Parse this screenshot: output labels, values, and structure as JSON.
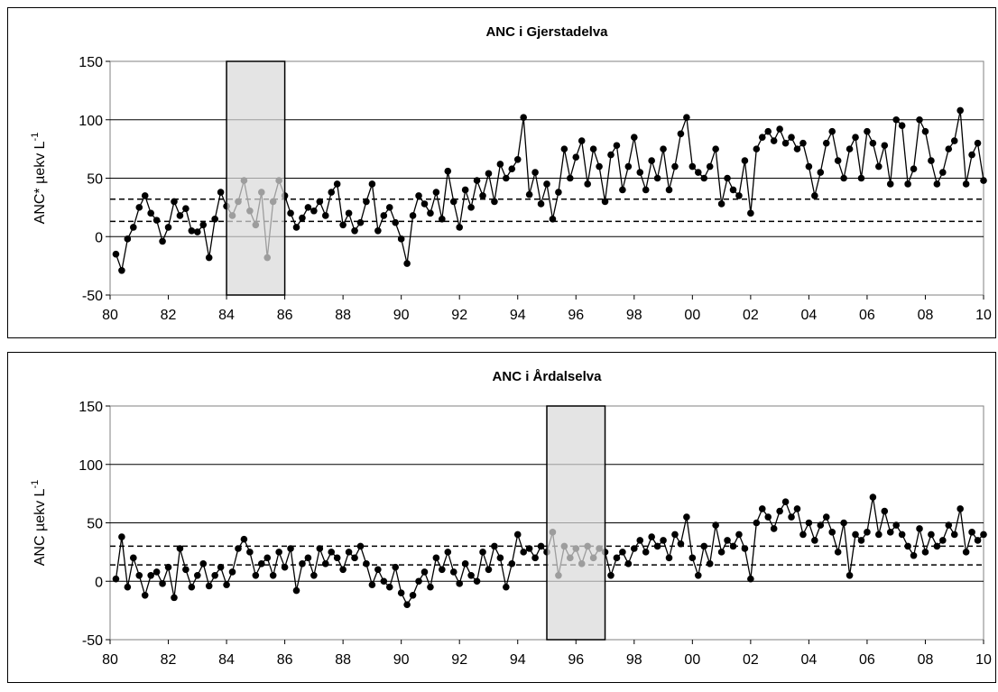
{
  "chart_data": [
    {
      "type": "line",
      "title": "ANC i Gjerstadelva",
      "ylabel_main": "ANC* µekv L",
      "ylabel_sup": "-1",
      "xlabel": "",
      "x_ticks": [
        "80",
        "82",
        "84",
        "86",
        "88",
        "90",
        "92",
        "94",
        "96",
        "98",
        "00",
        "02",
        "04",
        "06",
        "08",
        "10"
      ],
      "x_range": [
        1980,
        2010
      ],
      "y_ticks": [
        150,
        100,
        50,
        0,
        -50
      ],
      "ylim": [
        -50,
        150
      ],
      "grid": "horizontal",
      "reference_lines": [
        32,
        13
      ],
      "highlight_period": [
        1984,
        1986
      ],
      "series_points": [
        [
          1980.2,
          -15
        ],
        [
          1980.4,
          -29
        ],
        [
          1980.6,
          -2
        ],
        [
          1980.8,
          8
        ],
        [
          1981.0,
          25
        ],
        [
          1981.2,
          35
        ],
        [
          1981.4,
          20
        ],
        [
          1981.6,
          14
        ],
        [
          1981.8,
          -4
        ],
        [
          1982.0,
          8
        ],
        [
          1982.2,
          30
        ],
        [
          1982.4,
          18
        ],
        [
          1982.6,
          24
        ],
        [
          1982.8,
          5
        ],
        [
          1983.0,
          4
        ],
        [
          1983.2,
          10
        ],
        [
          1983.4,
          -18
        ],
        [
          1983.6,
          15
        ],
        [
          1983.8,
          38
        ],
        [
          1984.0,
          26
        ],
        [
          1984.2,
          18
        ],
        [
          1984.4,
          30
        ],
        [
          1984.6,
          48
        ],
        [
          1984.8,
          22
        ],
        [
          1985.0,
          10
        ],
        [
          1985.2,
          38
        ],
        [
          1985.4,
          -18
        ],
        [
          1985.6,
          30
        ],
        [
          1985.8,
          48
        ],
        [
          1986.0,
          35
        ],
        [
          1986.2,
          20
        ],
        [
          1986.4,
          8
        ],
        [
          1986.6,
          16
        ],
        [
          1986.8,
          25
        ],
        [
          1987.0,
          22
        ],
        [
          1987.2,
          30
        ],
        [
          1987.4,
          18
        ],
        [
          1987.6,
          38
        ],
        [
          1987.8,
          45
        ],
        [
          1988.0,
          10
        ],
        [
          1988.2,
          20
        ],
        [
          1988.4,
          5
        ],
        [
          1988.6,
          12
        ],
        [
          1988.8,
          30
        ],
        [
          1989.0,
          45
        ],
        [
          1989.2,
          5
        ],
        [
          1989.4,
          18
        ],
        [
          1989.6,
          25
        ],
        [
          1989.8,
          12
        ],
        [
          1990.0,
          -2
        ],
        [
          1990.2,
          -23
        ],
        [
          1990.4,
          18
        ],
        [
          1990.6,
          35
        ],
        [
          1990.8,
          28
        ],
        [
          1991.0,
          20
        ],
        [
          1991.2,
          38
        ],
        [
          1991.4,
          15
        ],
        [
          1991.6,
          56
        ],
        [
          1991.8,
          30
        ],
        [
          1992.0,
          8
        ],
        [
          1992.2,
          40
        ],
        [
          1992.4,
          25
        ],
        [
          1992.6,
          48
        ],
        [
          1992.8,
          35
        ],
        [
          1993.0,
          54
        ],
        [
          1993.2,
          30
        ],
        [
          1993.4,
          62
        ],
        [
          1993.6,
          50
        ],
        [
          1993.8,
          58
        ],
        [
          1994.0,
          66
        ],
        [
          1994.2,
          102
        ],
        [
          1994.4,
          36
        ],
        [
          1994.6,
          55
        ],
        [
          1994.8,
          28
        ],
        [
          1995.0,
          45
        ],
        [
          1995.2,
          15
        ],
        [
          1995.4,
          38
        ],
        [
          1995.6,
          75
        ],
        [
          1995.8,
          50
        ],
        [
          1996.0,
          68
        ],
        [
          1996.2,
          82
        ],
        [
          1996.4,
          45
        ],
        [
          1996.6,
          75
        ],
        [
          1996.8,
          60
        ],
        [
          1997.0,
          30
        ],
        [
          1997.2,
          70
        ],
        [
          1997.4,
          78
        ],
        [
          1997.6,
          40
        ],
        [
          1997.8,
          60
        ],
        [
          1998.0,
          85
        ],
        [
          1998.2,
          55
        ],
        [
          1998.4,
          40
        ],
        [
          1998.6,
          65
        ],
        [
          1998.8,
          50
        ],
        [
          1999.0,
          75
        ],
        [
          1999.2,
          40
        ],
        [
          1999.4,
          60
        ],
        [
          1999.6,
          88
        ],
        [
          1999.8,
          102
        ],
        [
          2000.0,
          60
        ],
        [
          2000.2,
          55
        ],
        [
          2000.4,
          50
        ],
        [
          2000.6,
          60
        ],
        [
          2000.8,
          75
        ],
        [
          2001.0,
          28
        ],
        [
          2001.2,
          50
        ],
        [
          2001.4,
          40
        ],
        [
          2001.6,
          35
        ],
        [
          2001.8,
          65
        ],
        [
          2002.0,
          20
        ],
        [
          2002.2,
          75
        ],
        [
          2002.4,
          85
        ],
        [
          2002.6,
          90
        ],
        [
          2002.8,
          82
        ],
        [
          2003.0,
          92
        ],
        [
          2003.2,
          80
        ],
        [
          2003.4,
          85
        ],
        [
          2003.6,
          75
        ],
        [
          2003.8,
          80
        ],
        [
          2004.0,
          60
        ],
        [
          2004.2,
          35
        ],
        [
          2004.4,
          55
        ],
        [
          2004.6,
          80
        ],
        [
          2004.8,
          90
        ],
        [
          2005.0,
          65
        ],
        [
          2005.2,
          50
        ],
        [
          2005.4,
          75
        ],
        [
          2005.6,
          85
        ],
        [
          2005.8,
          50
        ],
        [
          2006.0,
          90
        ],
        [
          2006.2,
          80
        ],
        [
          2006.4,
          60
        ],
        [
          2006.6,
          78
        ],
        [
          2006.8,
          45
        ],
        [
          2007.0,
          100
        ],
        [
          2007.2,
          95
        ],
        [
          2007.4,
          45
        ],
        [
          2007.6,
          58
        ],
        [
          2007.8,
          100
        ],
        [
          2008.0,
          90
        ],
        [
          2008.2,
          65
        ],
        [
          2008.4,
          45
        ],
        [
          2008.6,
          55
        ],
        [
          2008.8,
          75
        ],
        [
          2009.0,
          82
        ],
        [
          2009.2,
          108
        ],
        [
          2009.4,
          45
        ],
        [
          2009.6,
          70
        ],
        [
          2009.8,
          80
        ],
        [
          2010.0,
          48
        ]
      ]
    },
    {
      "type": "line",
      "title": "ANC i Årdalselva",
      "ylabel_main": "ANC µekv L",
      "ylabel_sup": "-1",
      "xlabel": "",
      "x_ticks": [
        "80",
        "82",
        "84",
        "86",
        "88",
        "90",
        "92",
        "94",
        "96",
        "98",
        "00",
        "02",
        "04",
        "06",
        "08",
        "10"
      ],
      "x_range": [
        1980,
        2010
      ],
      "y_ticks": [
        150,
        100,
        50,
        0,
        -50
      ],
      "ylim": [
        -50,
        150
      ],
      "grid": "horizontal",
      "reference_lines": [
        30,
        14
      ],
      "highlight_period": [
        1995,
        1997
      ],
      "series_points": [
        [
          1980.2,
          2
        ],
        [
          1980.4,
          38
        ],
        [
          1980.6,
          -5
        ],
        [
          1980.8,
          20
        ],
        [
          1981.0,
          5
        ],
        [
          1981.2,
          -12
        ],
        [
          1981.4,
          5
        ],
        [
          1981.6,
          8
        ],
        [
          1981.8,
          -2
        ],
        [
          1982.0,
          12
        ],
        [
          1982.2,
          -14
        ],
        [
          1982.4,
          28
        ],
        [
          1982.6,
          10
        ],
        [
          1982.8,
          -5
        ],
        [
          1983.0,
          5
        ],
        [
          1983.2,
          15
        ],
        [
          1983.4,
          -4
        ],
        [
          1983.6,
          5
        ],
        [
          1983.8,
          12
        ],
        [
          1984.0,
          -3
        ],
        [
          1984.2,
          8
        ],
        [
          1984.4,
          28
        ],
        [
          1984.6,
          36
        ],
        [
          1984.8,
          25
        ],
        [
          1985.0,
          5
        ],
        [
          1985.2,
          15
        ],
        [
          1985.4,
          20
        ],
        [
          1985.6,
          5
        ],
        [
          1985.8,
          25
        ],
        [
          1986.0,
          12
        ],
        [
          1986.2,
          28
        ],
        [
          1986.4,
          -8
        ],
        [
          1986.6,
          15
        ],
        [
          1986.8,
          20
        ],
        [
          1987.0,
          5
        ],
        [
          1987.2,
          28
        ],
        [
          1987.4,
          15
        ],
        [
          1987.6,
          25
        ],
        [
          1987.8,
          20
        ],
        [
          1988.0,
          10
        ],
        [
          1988.2,
          25
        ],
        [
          1988.4,
          20
        ],
        [
          1988.6,
          30
        ],
        [
          1988.8,
          15
        ],
        [
          1989.0,
          -3
        ],
        [
          1989.2,
          10
        ],
        [
          1989.4,
          0
        ],
        [
          1989.6,
          -5
        ],
        [
          1989.8,
          12
        ],
        [
          1990.0,
          -10
        ],
        [
          1990.2,
          -20
        ],
        [
          1990.4,
          -12
        ],
        [
          1990.6,
          0
        ],
        [
          1990.8,
          8
        ],
        [
          1991.0,
          -5
        ],
        [
          1991.2,
          20
        ],
        [
          1991.4,
          10
        ],
        [
          1991.6,
          25
        ],
        [
          1991.8,
          8
        ],
        [
          1992.0,
          -2
        ],
        [
          1992.2,
          15
        ],
        [
          1992.4,
          5
        ],
        [
          1992.6,
          0
        ],
        [
          1992.8,
          25
        ],
        [
          1993.0,
          10
        ],
        [
          1993.2,
          30
        ],
        [
          1993.4,
          20
        ],
        [
          1993.6,
          -5
        ],
        [
          1993.8,
          15
        ],
        [
          1994.0,
          40
        ],
        [
          1994.2,
          25
        ],
        [
          1994.4,
          28
        ],
        [
          1994.6,
          20
        ],
        [
          1994.8,
          30
        ],
        [
          1995.0,
          25
        ],
        [
          1995.2,
          42
        ],
        [
          1995.4,
          5
        ],
        [
          1995.6,
          30
        ],
        [
          1995.8,
          20
        ],
        [
          1996.0,
          28
        ],
        [
          1996.2,
          15
        ],
        [
          1996.4,
          30
        ],
        [
          1996.6,
          20
        ],
        [
          1996.8,
          28
        ],
        [
          1997.0,
          25
        ],
        [
          1997.2,
          5
        ],
        [
          1997.4,
          20
        ],
        [
          1997.6,
          25
        ],
        [
          1997.8,
          15
        ],
        [
          1998.0,
          28
        ],
        [
          1998.2,
          35
        ],
        [
          1998.4,
          25
        ],
        [
          1998.6,
          38
        ],
        [
          1998.8,
          30
        ],
        [
          1999.0,
          35
        ],
        [
          1999.2,
          20
        ],
        [
          1999.4,
          40
        ],
        [
          1999.6,
          32
        ],
        [
          1999.8,
          55
        ],
        [
          2000.0,
          20
        ],
        [
          2000.2,
          5
        ],
        [
          2000.4,
          30
        ],
        [
          2000.6,
          15
        ],
        [
          2000.8,
          48
        ],
        [
          2001.0,
          25
        ],
        [
          2001.2,
          35
        ],
        [
          2001.4,
          30
        ],
        [
          2001.6,
          40
        ],
        [
          2001.8,
          28
        ],
        [
          2002.0,
          2
        ],
        [
          2002.2,
          50
        ],
        [
          2002.4,
          62
        ],
        [
          2002.6,
          55
        ],
        [
          2002.8,
          45
        ],
        [
          2003.0,
          60
        ],
        [
          2003.2,
          68
        ],
        [
          2003.4,
          55
        ],
        [
          2003.6,
          62
        ],
        [
          2003.8,
          40
        ],
        [
          2004.0,
          50
        ],
        [
          2004.2,
          35
        ],
        [
          2004.4,
          48
        ],
        [
          2004.6,
          55
        ],
        [
          2004.8,
          42
        ],
        [
          2005.0,
          25
        ],
        [
          2005.2,
          50
        ],
        [
          2005.4,
          5
        ],
        [
          2005.6,
          40
        ],
        [
          2005.8,
          35
        ],
        [
          2006.0,
          42
        ],
        [
          2006.2,
          72
        ],
        [
          2006.4,
          40
        ],
        [
          2006.6,
          60
        ],
        [
          2006.8,
          42
        ],
        [
          2007.0,
          48
        ],
        [
          2007.2,
          40
        ],
        [
          2007.4,
          30
        ],
        [
          2007.6,
          22
        ],
        [
          2007.8,
          45
        ],
        [
          2008.0,
          25
        ],
        [
          2008.2,
          40
        ],
        [
          2008.4,
          30
        ],
        [
          2008.6,
          35
        ],
        [
          2008.8,
          48
        ],
        [
          2009.0,
          40
        ],
        [
          2009.2,
          62
        ],
        [
          2009.4,
          25
        ],
        [
          2009.6,
          42
        ],
        [
          2009.8,
          35
        ],
        [
          2010.0,
          40
        ]
      ]
    }
  ]
}
